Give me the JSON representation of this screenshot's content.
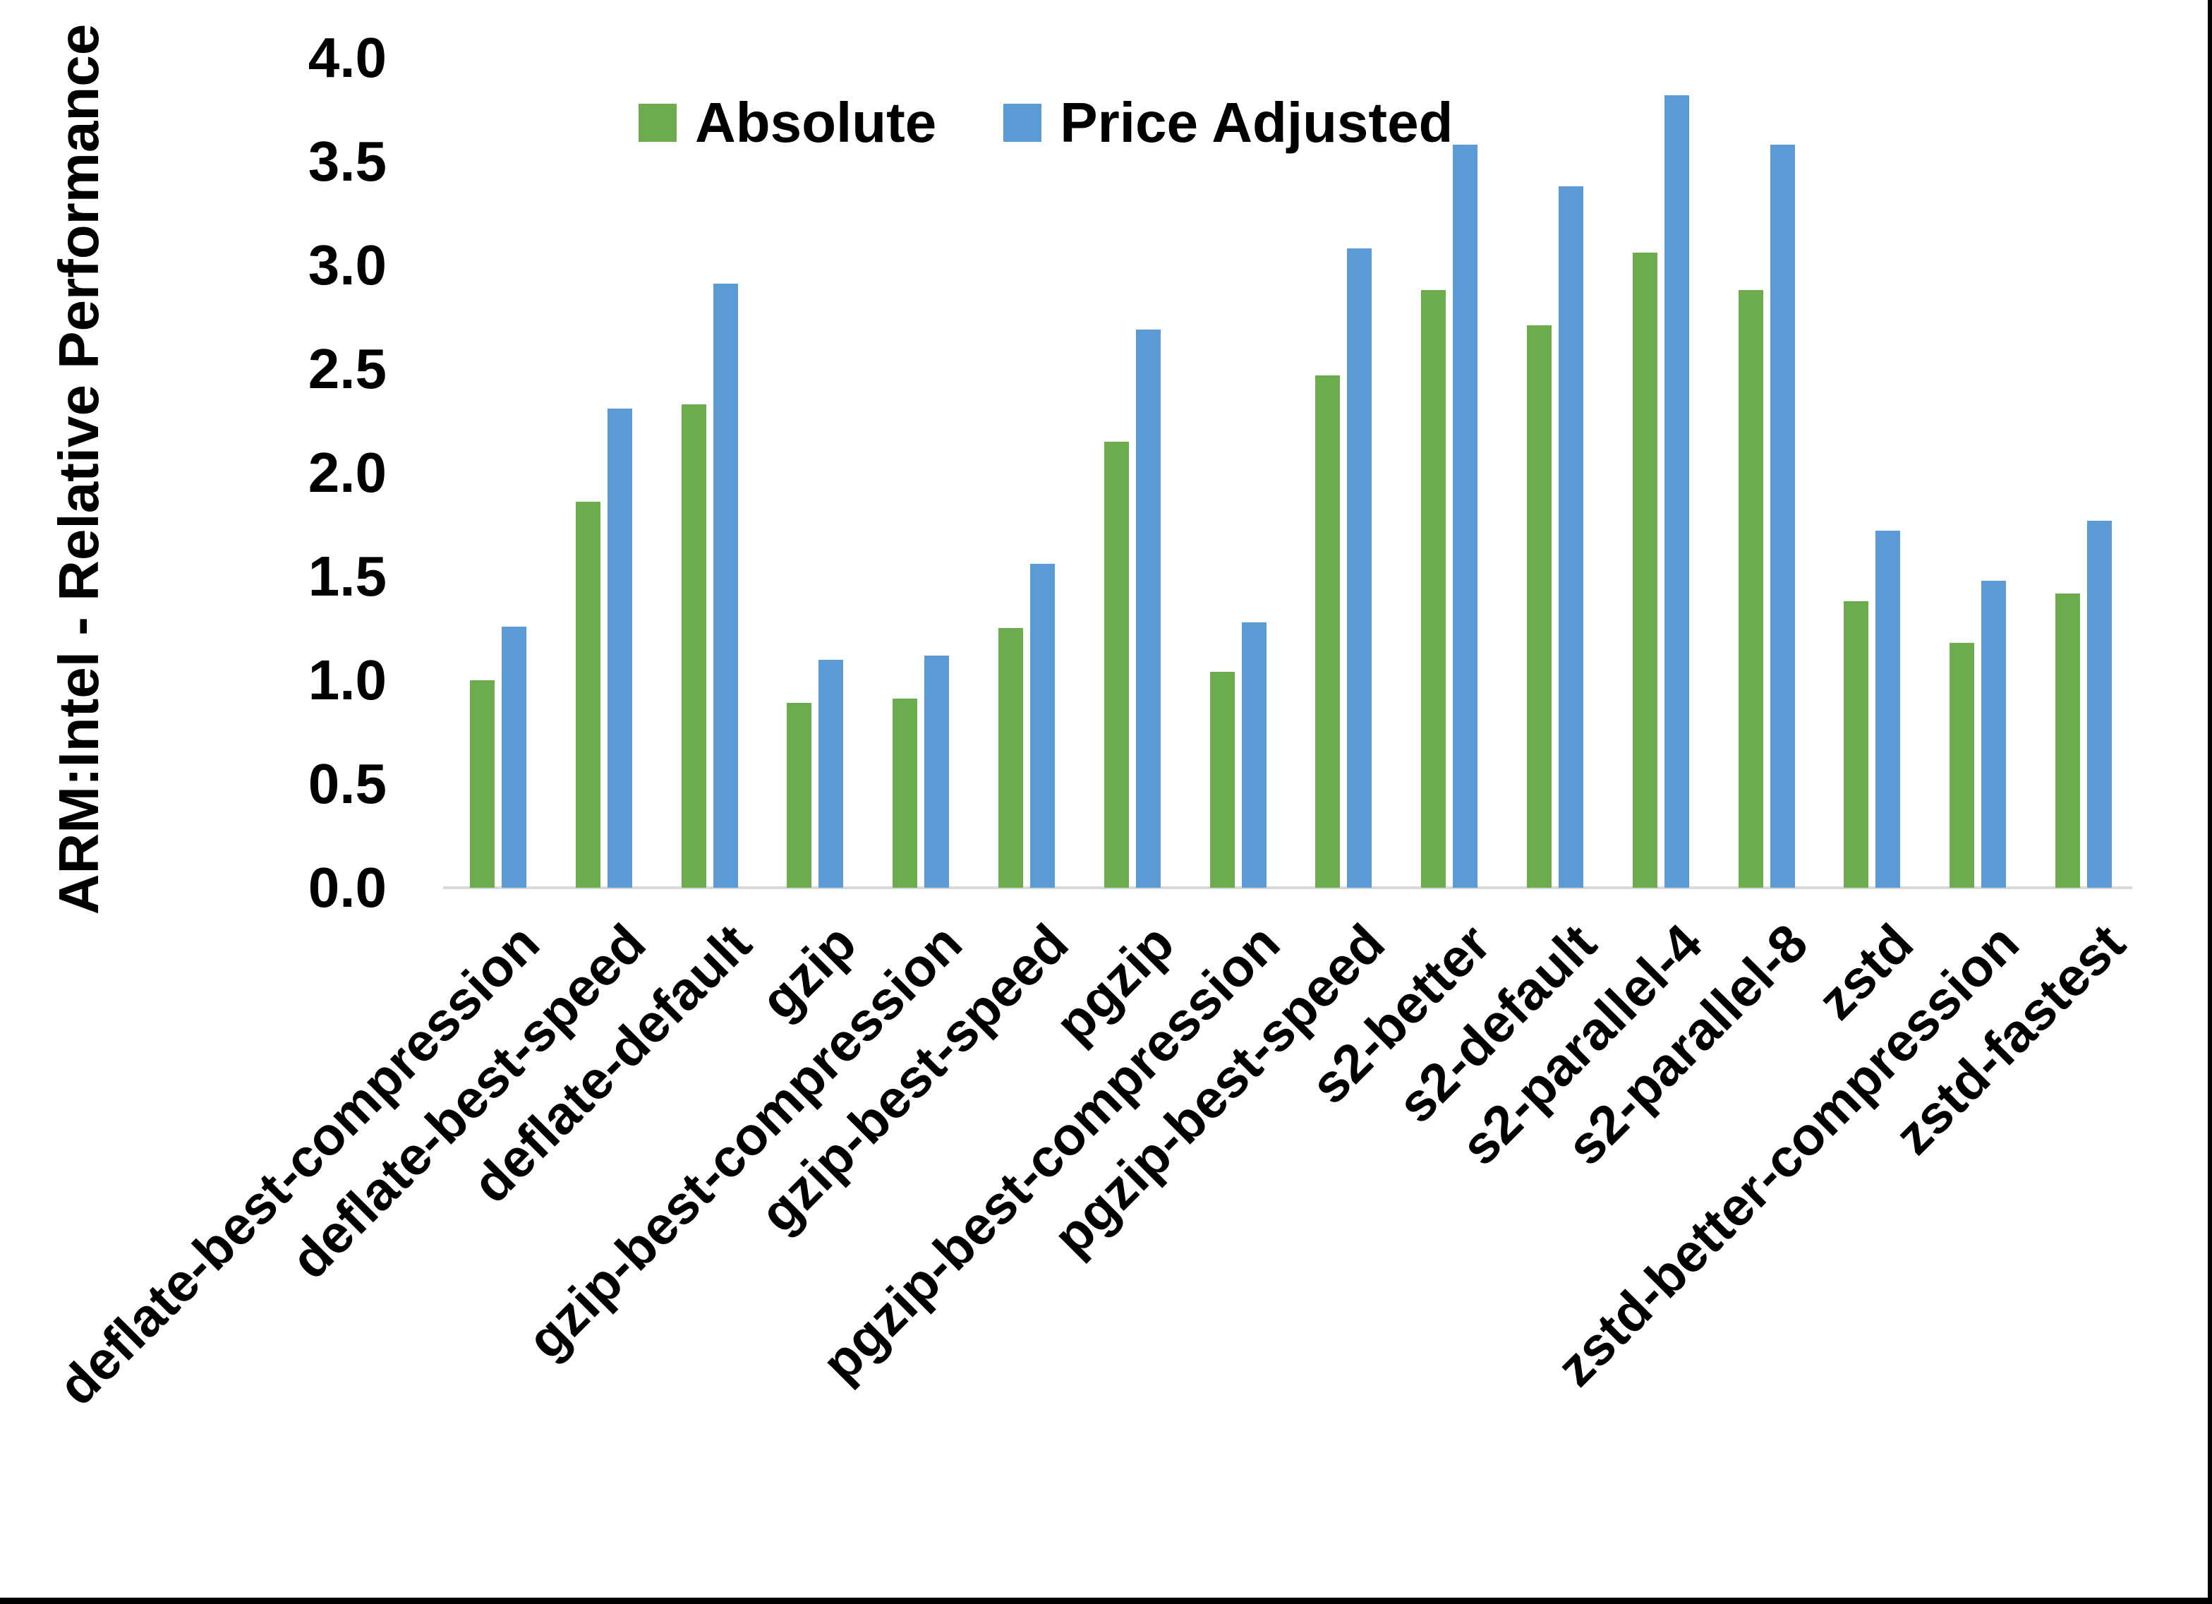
{
  "chart_data": {
    "type": "bar",
    "title": "",
    "ylabel": "ARM:Intel - Relative Performance",
    "xlabel": "",
    "ylim": [
      0.0,
      4.0
    ],
    "ytick_step": 0.5,
    "ytick_format_decimals": 1,
    "grid": false,
    "legend_position": "top-center",
    "background_color": "#ffffff",
    "axis_line_color": "#d9d9d9",
    "text_color": "#000000",
    "categories": [
      "deflate-best-compression",
      "deflate-best-speed",
      "deflate-default",
      "gzip",
      "gzip-best-compression",
      "gzip-best-speed",
      "pgzip",
      "pgzip-best-compression",
      "pgzip-best-speed",
      "s2-better",
      "s2-default",
      "s2-parallel-4",
      "s2-parallel-8",
      "zstd",
      "zstd-better-compression",
      "zstd-fastest"
    ],
    "series": [
      {
        "name": "Absolute",
        "color": "#6cac4d",
        "values": [
          1.0,
          1.86,
          2.33,
          0.89,
          0.91,
          1.25,
          2.15,
          1.04,
          2.47,
          2.88,
          2.71,
          3.06,
          2.88,
          1.38,
          1.18,
          1.42
        ]
      },
      {
        "name": "Price Adjusted",
        "color": "#5b9bd5",
        "values": [
          1.26,
          2.31,
          2.91,
          1.1,
          1.12,
          1.56,
          2.69,
          1.28,
          3.08,
          3.58,
          3.38,
          3.82,
          3.58,
          1.72,
          1.48,
          1.77
        ]
      }
    ]
  },
  "frame": {
    "right_border_color": "#000000",
    "bottom_border_color": "#000000"
  }
}
